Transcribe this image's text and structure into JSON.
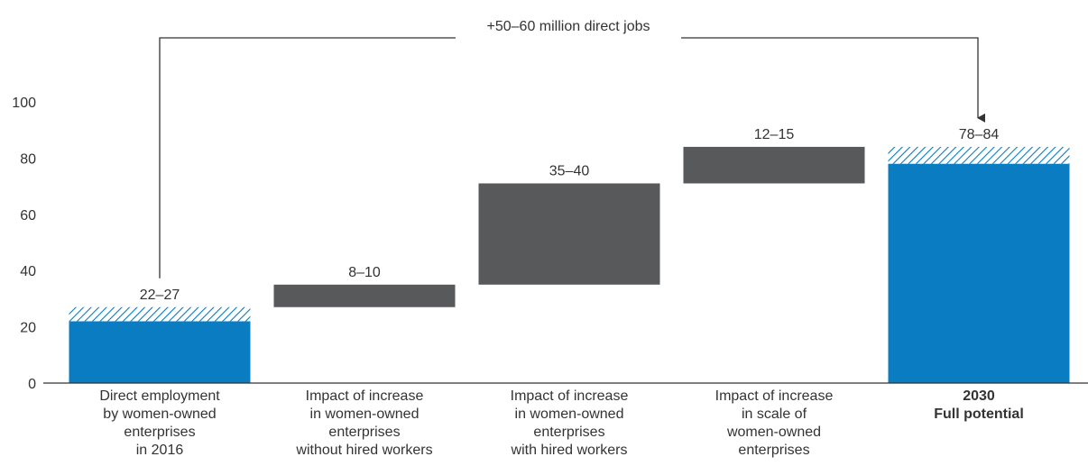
{
  "chart_data": {
    "type": "waterfall",
    "annotation": "+50–60 million direct jobs",
    "yticks": [
      "0",
      "20",
      "40",
      "60",
      "80",
      "100"
    ],
    "ylim": [
      0,
      100
    ],
    "categories": [
      "Direct employment\nby women-owned\nenterprises\nin 2016",
      "Impact of increase\nin women-owned\nenterprises\nwithout hired workers",
      "Impact of increase\nin women-owned\nenterprises\nwith hired workers",
      "Impact of increase\nin scale of\nwomen-owned\nenterprises",
      "2030\nFull potential"
    ],
    "bars": [
      {
        "kind": "total",
        "low": 22,
        "high": 27,
        "label": "22–27"
      },
      {
        "kind": "step",
        "start": 27,
        "end": 35,
        "label": "8–10"
      },
      {
        "kind": "step",
        "start": 35,
        "end": 71,
        "label": "35–40"
      },
      {
        "kind": "step",
        "start": 71,
        "end": 84,
        "label": "12–15"
      },
      {
        "kind": "total",
        "low": 78,
        "high": 84,
        "label": "78–84"
      }
    ],
    "colors": {
      "total": "#0a7cc1",
      "step": "#58595b",
      "hatch": "#0a7cc1",
      "axis": "#333333"
    }
  }
}
